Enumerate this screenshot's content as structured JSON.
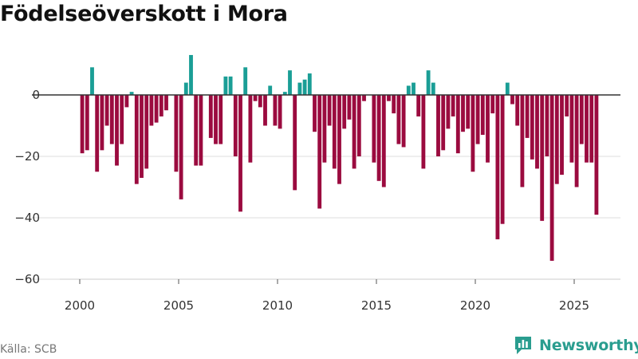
{
  "title": "Födelseöverskott i Mora",
  "source": "Källa: SCB",
  "brand": {
    "name": "Newsworthy",
    "icon": "newsworthy-logo-icon"
  },
  "colors": {
    "positive": "#1a9e96",
    "negative": "#9b0b3f",
    "grid": "#dddddd",
    "zero": "#333333",
    "brand": "#2a9d8f"
  },
  "chart_data": {
    "type": "bar",
    "title": "Födelseöverskott i Mora",
    "xlabel": "",
    "ylabel": "",
    "frequency": "quarterly",
    "start": "2000 Q1",
    "xlim": [
      1999.6,
      2027.3
    ],
    "ylim": [
      -62,
      16
    ],
    "yticks": [
      0,
      -20,
      -40,
      -60
    ],
    "ytick_labels": [
      "0",
      "−20",
      "−40",
      "−60"
    ],
    "xticks": [
      2000,
      2005,
      2010,
      2015,
      2020,
      2025
    ],
    "xtick_labels": [
      "2000",
      "2005",
      "2010",
      "2015",
      "2020",
      "2025"
    ],
    "grid": true,
    "values": [
      -19,
      -18,
      9,
      -25,
      -18,
      -10,
      -16,
      -23,
      -16,
      -4,
      1,
      -29,
      -27,
      -24,
      -10,
      -9,
      -7,
      -5,
      0,
      -25,
      -34,
      4,
      13,
      -23,
      -23,
      0,
      -14,
      -16,
      -16,
      6,
      6,
      -20,
      -38,
      9,
      -22,
      -2,
      -4,
      -10,
      3,
      -10,
      -11,
      1,
      8,
      -31,
      4,
      5,
      7,
      -12,
      -37,
      -22,
      -10,
      -24,
      -29,
      -11,
      -8,
      -24,
      -20,
      -2,
      0,
      -22,
      -28,
      -30,
      -2,
      -6,
      -16,
      -17,
      3,
      4,
      -7,
      -24,
      8,
      4,
      -20,
      -18,
      -11,
      -7,
      -19,
      -12,
      -11,
      -25,
      -16,
      -13,
      -22,
      -6,
      -47,
      -42,
      4,
      -3,
      -10,
      -30,
      -14,
      -21,
      -24,
      -41,
      -20,
      -54,
      -29,
      -26,
      -7,
      -22,
      -30,
      -16,
      -22,
      -22,
      -39
    ]
  }
}
